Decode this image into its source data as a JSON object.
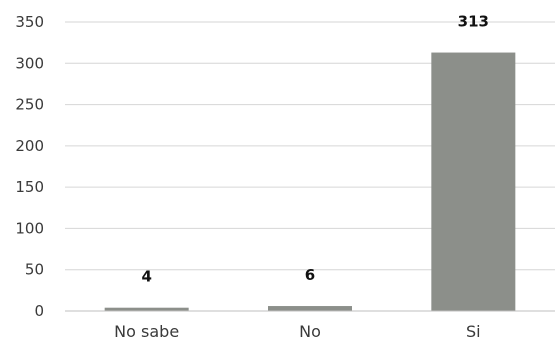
{
  "chart_data": {
    "type": "bar",
    "categories": [
      "No sabe",
      "No",
      "Si"
    ],
    "values": [
      4,
      6,
      313
    ],
    "data_labels": [
      "4",
      "6",
      "313"
    ],
    "ylim": [
      0,
      350
    ],
    "yticks": [
      0,
      50,
      100,
      150,
      200,
      250,
      300,
      350
    ],
    "grid": true,
    "bar_color": "#8c8f8a",
    "title": "",
    "xlabel": "",
    "ylabel": ""
  }
}
